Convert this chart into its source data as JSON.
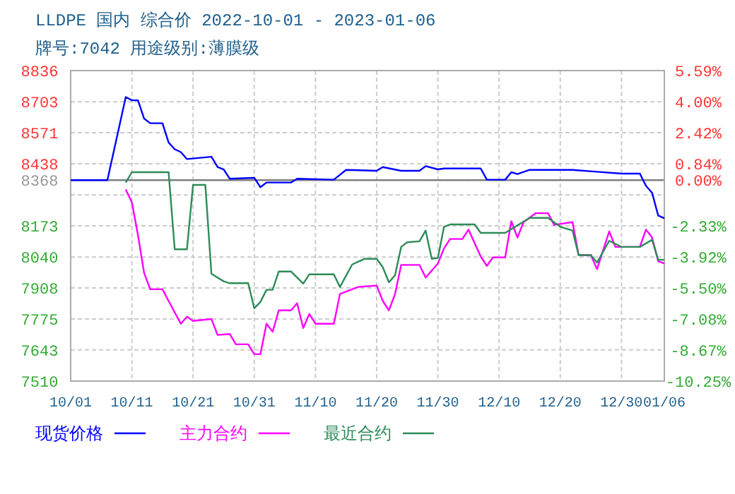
{
  "chart_data": {
    "type": "line",
    "title": "LLDPE 国内 综合价 2022-10-01 - 2023-01-06",
    "subtitle": "牌号:7042 用途级别:薄膜级",
    "xlim": [
      "2022-10-01",
      "2023-01-06"
    ],
    "xticks": [
      {
        "value": "2022-10-01",
        "label": "10/01"
      },
      {
        "value": "2022-10-11",
        "label": "10/11"
      },
      {
        "value": "2022-10-21",
        "label": "10/21"
      },
      {
        "value": "2022-10-31",
        "label": "10/31"
      },
      {
        "value": "2022-11-10",
        "label": "11/10"
      },
      {
        "value": "2022-11-20",
        "label": "11/20"
      },
      {
        "value": "2022-11-30",
        "label": "11/30"
      },
      {
        "value": "2022-12-10",
        "label": "12/10"
      },
      {
        "value": "2022-12-20",
        "label": "12/20"
      },
      {
        "value": "2022-12-30",
        "label": "12/30"
      },
      {
        "value": "2023-01-06",
        "label": "01/06"
      }
    ],
    "ylim": [
      7510,
      8836
    ],
    "yticks": [
      7510,
      7643,
      7775,
      7908,
      8040,
      8173,
      {
        "value": 8305,
        "label": null
      },
      8368,
      8438,
      8571,
      8703,
      8836
    ],
    "y2lim": [
      -10.25,
      5.59
    ],
    "y2ticks": [
      {
        "value": -10.25,
        "label": "-10.25%"
      },
      {
        "value": -8.67,
        "label": "-8.67%"
      },
      {
        "value": -7.08,
        "label": "-7.08%"
      },
      {
        "value": -5.5,
        "label": "-5.50%"
      },
      {
        "value": -3.92,
        "label": "-3.92%"
      },
      {
        "value": -2.33,
        "label": "-2.33%"
      },
      {
        "value": 0,
        "label": "0.00%"
      },
      {
        "value": 0.84,
        "label": "0.84%"
      },
      {
        "value": 2.42,
        "label": "2.42%"
      },
      {
        "value": 4,
        "label": "4.00%"
      },
      {
        "value": 5.59,
        "label": "5.59%"
      }
    ],
    "ref_lines": [
      {
        "axis": "y",
        "value": 8368,
        "color": "#808080"
      }
    ],
    "grid": true,
    "legend": "bottom",
    "line_style": "solid",
    "marker": "none",
    "series": [
      {
        "name": "现货价格",
        "color": "#0000ff",
        "x": [
          "2022-10-01",
          "2022-10-07",
          "2022-10-10",
          "2022-10-11",
          "2022-10-12",
          "2022-10-13",
          "2022-10-14",
          "2022-10-16",
          "2022-10-17",
          "2022-10-18",
          "2022-10-19",
          "2022-10-20",
          "2022-10-24",
          "2022-10-25",
          "2022-10-26",
          "2022-10-27",
          "2022-10-31",
          "2022-11-01",
          "2022-11-02",
          "2022-11-06",
          "2022-11-07",
          "2022-11-13",
          "2022-11-15",
          "2022-11-20",
          "2022-11-21",
          "2022-11-24",
          "2022-11-27",
          "2022-11-28",
          "2022-11-30",
          "2022-12-01",
          "2022-12-07",
          "2022-12-08",
          "2022-12-11",
          "2022-12-12",
          "2022-12-13",
          "2022-12-15",
          "2022-12-22",
          "2022-12-26",
          "2022-12-30",
          "2023-01-02",
          "2023-01-03",
          "2023-01-04",
          "2023-01-05",
          "2023-01-06"
        ],
        "values": [
          8368,
          8368,
          8723,
          8709,
          8709,
          8631,
          8611,
          8611,
          8529,
          8500,
          8488,
          8458,
          8468,
          8424,
          8414,
          8374,
          8378,
          8338,
          8358,
          8358,
          8374,
          8370,
          8412,
          8408,
          8424,
          8408,
          8408,
          8428,
          8414,
          8418,
          8418,
          8370,
          8370,
          8402,
          8394,
          8412,
          8412,
          8404,
          8396,
          8396,
          8344,
          8314,
          8217,
          8205
        ]
      },
      {
        "name": "主力合约",
        "color": "#ff00ff",
        "x": [
          "2022-10-10",
          "2022-10-11",
          "2022-10-12",
          "2022-10-13",
          "2022-10-14",
          "2022-10-16",
          "2022-10-17",
          "2022-10-19",
          "2022-10-20",
          "2022-10-21",
          "2022-10-24",
          "2022-10-25",
          "2022-10-27",
          "2022-10-28",
          "2022-10-30",
          "2022-10-31",
          "2022-11-01",
          "2022-11-02",
          "2022-11-03",
          "2022-11-04",
          "2022-11-06",
          "2022-11-07",
          "2022-11-08",
          "2022-11-09",
          "2022-11-10",
          "2022-11-13",
          "2022-11-14",
          "2022-11-15",
          "2022-11-16",
          "2022-11-17",
          "2022-11-20",
          "2022-11-21",
          "2022-11-22",
          "2022-11-23",
          "2022-11-24",
          "2022-11-27",
          "2022-11-28",
          "2022-11-30",
          "2022-12-01",
          "2022-12-02",
          "2022-12-04",
          "2022-12-05",
          "2022-12-07",
          "2022-12-08",
          "2022-12-09",
          "2022-12-11",
          "2022-12-12",
          "2022-12-13",
          "2022-12-14",
          "2022-12-16",
          "2022-12-18",
          "2022-12-19",
          "2022-12-22",
          "2022-12-23",
          "2022-12-25",
          "2022-12-26",
          "2022-12-28",
          "2022-12-29",
          "2023-01-02",
          "2023-01-03",
          "2023-01-04",
          "2023-01-05",
          "2023-01-06"
        ],
        "values": [
          8328,
          8273,
          8133,
          7972,
          7902,
          7902,
          7852,
          7755,
          7785,
          7767,
          7775,
          7707,
          7711,
          7667,
          7667,
          7625,
          7625,
          7755,
          7721,
          7812,
          7812,
          7842,
          7737,
          7797,
          7755,
          7755,
          7882,
          7892,
          7902,
          7912,
          7918,
          7852,
          7812,
          7882,
          8006,
          8006,
          7952,
          8012,
          8077,
          8117,
          8117,
          8157,
          8042,
          8002,
          8038,
          8038,
          8193,
          8123,
          8189,
          8227,
          8227,
          8177,
          8189,
          8048,
          8048,
          7988,
          8149,
          8083,
          8083,
          8157,
          8123,
          8022,
          8012
        ]
      },
      {
        "name": "最近合约",
        "color": "#2e8b57",
        "x": [
          "2022-10-10",
          "2022-10-11",
          "2022-10-17",
          "2022-10-18",
          "2022-10-20",
          "2022-10-21",
          "2022-10-23",
          "2022-10-24",
          "2022-10-26",
          "2022-10-27",
          "2022-10-30",
          "2022-10-31",
          "2022-11-01",
          "2022-11-02",
          "2022-11-03",
          "2022-11-04",
          "2022-11-06",
          "2022-11-08",
          "2022-11-09",
          "2022-11-13",
          "2022-11-14",
          "2022-11-16",
          "2022-11-18",
          "2022-11-20",
          "2022-11-21",
          "2022-11-22",
          "2022-11-23",
          "2022-11-24",
          "2022-11-25",
          "2022-11-27",
          "2022-11-28",
          "2022-11-29",
          "2022-11-30",
          "2022-12-01",
          "2022-12-02",
          "2022-12-06",
          "2022-12-07",
          "2022-12-11",
          "2022-12-15",
          "2022-12-18",
          "2022-12-20",
          "2022-12-22",
          "2022-12-23",
          "2022-12-25",
          "2022-12-26",
          "2022-12-28",
          "2022-12-30",
          "2023-01-02",
          "2023-01-04",
          "2023-01-05",
          "2023-01-06"
        ],
        "values": [
          8358,
          8402,
          8402,
          8073,
          8073,
          8348,
          8348,
          7968,
          7936,
          7928,
          7928,
          7821,
          7848,
          7900,
          7900,
          7978,
          7978,
          7926,
          7966,
          7966,
          7912,
          8008,
          8032,
          8032,
          7996,
          7932,
          7962,
          8083,
          8103,
          8107,
          8153,
          8032,
          8036,
          8169,
          8179,
          8179,
          8143,
          8143,
          8207,
          8207,
          8169,
          8153,
          8048,
          8048,
          8016,
          8109,
          8083,
          8083,
          8113,
          8028,
          8028
        ]
      }
    ]
  }
}
